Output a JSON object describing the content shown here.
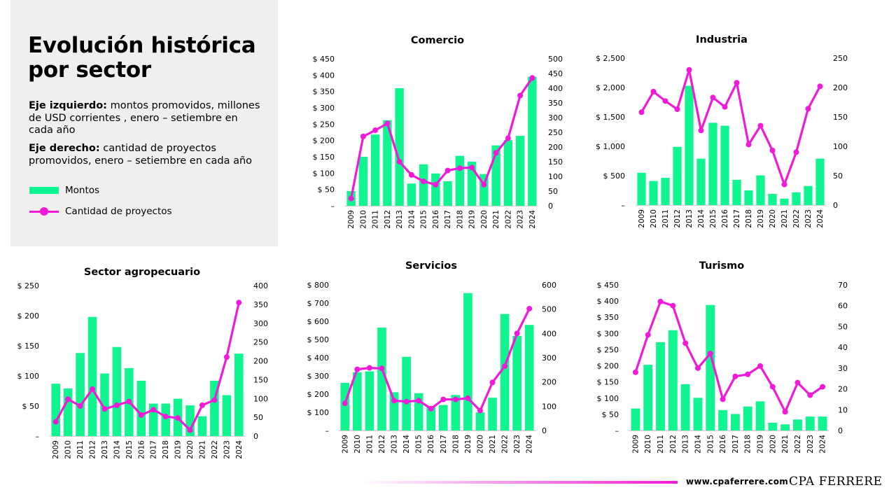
{
  "title": "Evolución histórica por sector",
  "left_axis_label": "Eje izquierdo:",
  "left_axis_desc": "montos promovidos, millones de USD corrientes , enero – setiembre en cada año",
  "right_axis_label": "Eje derecho:",
  "right_axis_desc": "cantidad de proyectos promovidos, enero – setiembre en cada año",
  "legend": {
    "bars": "Montos",
    "line": "Cantidad de proyectos"
  },
  "colors": {
    "bars": "#10f58f",
    "line": "#f01ad8",
    "panel": "#efefef"
  },
  "footer": {
    "website": "www.cpaferrere.com",
    "brand": "CPA FERRERE"
  },
  "chart_data": [
    {
      "title": "Comercio",
      "type": "bar+line",
      "categories": [
        "2009",
        "2010",
        "2011",
        "2012",
        "2013",
        "2014",
        "2015",
        "2016",
        "2017",
        "2018",
        "2019",
        "2020",
        "2021",
        "2022",
        "2023",
        "2024"
      ],
      "series": [
        {
          "name": "Montos",
          "axis": "left",
          "values": [
            45,
            150,
            218,
            262,
            360,
            68,
            127,
            99,
            75,
            153,
            135,
            97,
            185,
            201,
            214,
            395
          ]
        },
        {
          "name": "Cantidad de proyectos",
          "axis": "right",
          "values": [
            25,
            236,
            257,
            280,
            150,
            105,
            83,
            72,
            120,
            128,
            130,
            72,
            180,
            230,
            375,
            435
          ]
        }
      ],
      "ylim_left": [
        0,
        450
      ],
      "ylim_right": [
        0,
        500
      ],
      "left_ticks": [
        "–",
        "$ 50",
        "$ 100",
        "$ 150",
        "$ 200",
        "$ 250",
        "$ 300",
        "$ 350",
        "$ 400",
        "$ 450"
      ],
      "right_ticks": [
        "0",
        "50",
        "100",
        "150",
        "200",
        "250",
        "300",
        "350",
        "400",
        "450",
        "500"
      ]
    },
    {
      "title": "Industria",
      "type": "bar+line",
      "categories": [
        "2009",
        "2010",
        "2011",
        "2012",
        "2013",
        "2014",
        "2015",
        "2016",
        "2017",
        "2018",
        "2019",
        "2020",
        "2021",
        "2022",
        "2023",
        "2024"
      ],
      "series": [
        {
          "name": "Montos",
          "axis": "left",
          "values": [
            550,
            410,
            465,
            990,
            2030,
            790,
            1400,
            1350,
            430,
            250,
            505,
            190,
            110,
            215,
            325,
            790
          ]
        },
        {
          "name": "Cantidad de proyectos",
          "axis": "right",
          "values": [
            158,
            193,
            177,
            163,
            230,
            127,
            183,
            167,
            208,
            103,
            135,
            93,
            35,
            90,
            164,
            202
          ]
        }
      ],
      "ylim_left": [
        0,
        2500
      ],
      "ylim_right": [
        0,
        250
      ],
      "left_ticks": [
        "–",
        "$ 500",
        "$ 1,000",
        "$ 1,500",
        "$ 2,000",
        "$ 2,500"
      ],
      "right_ticks": [
        "0",
        "50",
        "100",
        "150",
        "200",
        "250"
      ]
    },
    {
      "title": "Sector agropecuario",
      "type": "bar+line",
      "categories": [
        "2009",
        "2010",
        "2011",
        "2012",
        "2013",
        "2014",
        "2015",
        "2016",
        "2017",
        "2018",
        "2019",
        "2020",
        "2021",
        "2022",
        "2023",
        "2024"
      ],
      "series": [
        {
          "name": "Montos",
          "axis": "left",
          "values": [
            87,
            79,
            138,
            198,
            104,
            148,
            113,
            92,
            54,
            54,
            62,
            51,
            33,
            92,
            68,
            137
          ]
        },
        {
          "name": "Cantidad de proyectos",
          "axis": "right",
          "values": [
            38,
            98,
            80,
            125,
            72,
            82,
            92,
            56,
            70,
            52,
            48,
            16,
            82,
            96,
            210,
            355
          ]
        }
      ],
      "ylim_left": [
        0,
        250
      ],
      "ylim_right": [
        0,
        400
      ],
      "left_ticks": [
        "–",
        "$ 50",
        "$ 100",
        "$ 150",
        "$ 200",
        "$ 250"
      ],
      "right_ticks": [
        "0",
        "50",
        "100",
        "150",
        "200",
        "250",
        "300",
        "350",
        "400"
      ]
    },
    {
      "title": "Servicios",
      "type": "bar+line",
      "categories": [
        "2009",
        "2010",
        "2011",
        "2012",
        "2013",
        "2014",
        "2015",
        "2016",
        "2017",
        "2018",
        "2019",
        "2020",
        "2021",
        "2022",
        "2023",
        "2024"
      ],
      "series": [
        {
          "name": "Montos",
          "axis": "left",
          "values": [
            262,
            320,
            325,
            565,
            210,
            405,
            205,
            130,
            140,
            195,
            755,
            100,
            180,
            640,
            520,
            580
          ]
        },
        {
          "name": "Cantidad de proyectos",
          "axis": "right",
          "values": [
            112,
            252,
            258,
            256,
            123,
            119,
            123,
            90,
            128,
            128,
            133,
            82,
            198,
            265,
            400,
            502
          ]
        }
      ],
      "ylim_left": [
        0,
        800
      ],
      "ylim_right": [
        0,
        600
      ],
      "left_ticks": [
        "–",
        "$ 100",
        "$ 200",
        "$ 300",
        "$ 400",
        "$ 500",
        "$ 600",
        "$ 700",
        "$ 800"
      ],
      "right_ticks": [
        "0",
        "100",
        "200",
        "300",
        "400",
        "500",
        "600"
      ]
    },
    {
      "title": "Turismo",
      "type": "bar+line",
      "categories": [
        "2009",
        "2010",
        "2011",
        "2012",
        "2013",
        "2014",
        "2015",
        "2016",
        "2017",
        "2018",
        "2019",
        "2020",
        "2021",
        "2022",
        "2023",
        "2024"
      ],
      "series": [
        {
          "name": "Montos",
          "axis": "left",
          "values": [
            68,
            203,
            273,
            310,
            143,
            101,
            388,
            63,
            51,
            74,
            90,
            24,
            19,
            34,
            43,
            43
          ]
        },
        {
          "name": "Cantidad de proyectos",
          "axis": "right",
          "values": [
            28,
            46,
            62,
            60,
            42,
            30,
            37,
            15,
            26,
            27,
            31,
            21,
            9,
            23,
            17,
            21
          ]
        }
      ],
      "ylim_left": [
        0,
        450
      ],
      "ylim_right": [
        0,
        70
      ],
      "left_ticks": [
        "–",
        "$ 50",
        "$ 100",
        "$ 150",
        "$ 200",
        "$ 250",
        "$ 300",
        "$ 350",
        "$ 400",
        "$ 450"
      ],
      "right_ticks": [
        "0",
        "10",
        "20",
        "30",
        "40",
        "50",
        "60",
        "70"
      ]
    }
  ]
}
